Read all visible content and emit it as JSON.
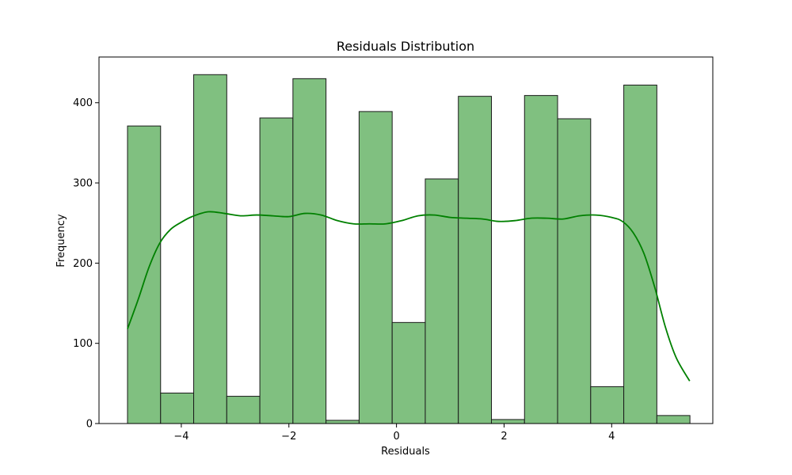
{
  "chart_data": {
    "type": "bar",
    "title": "Residuals Distribution",
    "xlabel": "Residuals",
    "ylabel": "Frequency",
    "xlim": [
      -5.53,
      5.88
    ],
    "ylim": [
      0,
      457
    ],
    "grid": false,
    "legend": "none",
    "colors": {
      "bar_fill": "#80c080",
      "bar_edge": "#1a1a1a",
      "kde_line": "#008000",
      "frame": "#000000"
    },
    "x_ticks": [
      -4,
      -2,
      0,
      2,
      4
    ],
    "x_tick_labels": [
      "−4",
      "−2",
      "0",
      "2",
      "4"
    ],
    "y_ticks": [
      0,
      100,
      200,
      300,
      400
    ],
    "y_tick_labels": [
      "0",
      "100",
      "200",
      "300",
      "400"
    ],
    "bins": [
      {
        "start": -5.0,
        "end": -4.385,
        "count": 371
      },
      {
        "start": -4.385,
        "end": -3.77,
        "count": 38
      },
      {
        "start": -3.77,
        "end": -3.155,
        "count": 435
      },
      {
        "start": -3.155,
        "end": -2.54,
        "count": 34
      },
      {
        "start": -2.54,
        "end": -1.925,
        "count": 381
      },
      {
        "start": -1.925,
        "end": -1.31,
        "count": 430
      },
      {
        "start": -1.31,
        "end": -0.695,
        "count": 4
      },
      {
        "start": -0.695,
        "end": -0.08,
        "count": 389
      },
      {
        "start": -0.08,
        "end": 0.535,
        "count": 126
      },
      {
        "start": 0.535,
        "end": 1.15,
        "count": 305
      },
      {
        "start": 1.15,
        "end": 1.765,
        "count": 408
      },
      {
        "start": 1.765,
        "end": 2.38,
        "count": 5
      },
      {
        "start": 2.38,
        "end": 2.995,
        "count": 409
      },
      {
        "start": 2.995,
        "end": 3.61,
        "count": 380
      },
      {
        "start": 3.61,
        "end": 4.225,
        "count": 46
      },
      {
        "start": 4.225,
        "end": 4.84,
        "count": 422
      },
      {
        "start": 4.84,
        "end": 5.455,
        "count": 10
      }
    ],
    "kde": {
      "x": [
        -5.0,
        -4.8,
        -4.6,
        -4.4,
        -4.2,
        -4.0,
        -3.8,
        -3.5,
        -3.2,
        -2.9,
        -2.6,
        -2.3,
        -2.0,
        -1.7,
        -1.4,
        -1.1,
        -0.8,
        -0.5,
        -0.2,
        0.1,
        0.4,
        0.7,
        1.0,
        1.3,
        1.6,
        1.9,
        2.2,
        2.5,
        2.8,
        3.1,
        3.4,
        3.7,
        4.0,
        4.2,
        4.4,
        4.6,
        4.8,
        5.0,
        5.2,
        5.45
      ],
      "y": [
        118,
        155,
        195,
        225,
        242,
        251,
        258,
        264,
        262,
        259,
        260,
        259,
        258,
        262,
        260,
        253,
        249,
        249,
        249,
        253,
        259,
        260,
        257,
        256,
        255,
        252,
        253,
        256,
        256,
        255,
        259,
        260,
        257,
        252,
        238,
        212,
        170,
        120,
        82,
        53
      ]
    }
  }
}
